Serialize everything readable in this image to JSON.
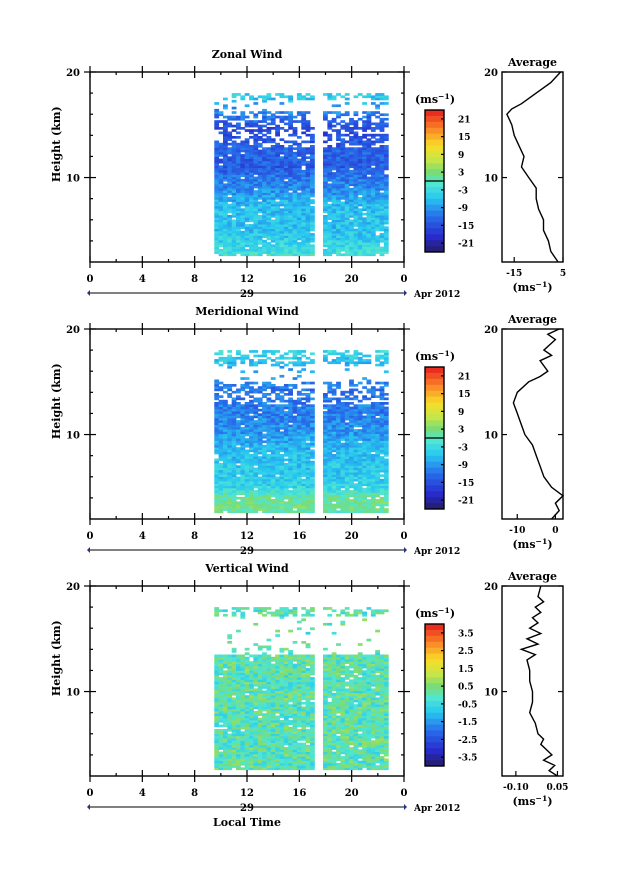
{
  "chart_data": [
    {
      "type": "heatmap",
      "title": "Zonal Wind",
      "ylabel": "Height (km)",
      "ylim": [
        2,
        20
      ],
      "xlim": [
        0,
        24
      ],
      "yticks": [
        "20",
        "10"
      ],
      "xticks": [
        "0",
        "4",
        "8",
        "12",
        "16",
        "20",
        "0"
      ],
      "date_label": "29",
      "month_label": "Apr 2012",
      "data_time_range": [
        9.5,
        22.8
      ],
      "gap_time": 17.5,
      "gap_heights": [
        17.2,
        16.2
      ],
      "sparse_above": 12.7,
      "colorbar": {
        "unit": "(ms⁻¹)",
        "tick_labels": [
          "21",
          "15",
          "9",
          "3",
          "-3",
          "-9",
          "-15",
          "-21"
        ],
        "min": -24,
        "max": 24,
        "zero_line": true
      },
      "field_profile": [
        {
          "h": 2,
          "v": 1
        },
        {
          "h": 3,
          "v": -3
        },
        {
          "h": 5,
          "v": -6
        },
        {
          "h": 7,
          "v": -6
        },
        {
          "h": 9,
          "v": -10
        },
        {
          "h": 11,
          "v": -14
        },
        {
          "h": 12.5,
          "v": -13
        },
        {
          "h": 14.5,
          "v": -16
        },
        {
          "h": 16.5,
          "v": -9
        },
        {
          "h": 17.5,
          "v": -5
        }
      ],
      "average": {
        "title": "Average",
        "xlabel": "(ms⁻¹)",
        "xticks": [
          "-15",
          "5"
        ],
        "yticks": [
          "20",
          "10"
        ],
        "xlim": [
          -20,
          5
        ],
        "ylim": [
          2,
          20
        ],
        "profile": [
          {
            "h": 2.0,
            "v": 3
          },
          {
            "h": 3.0,
            "v": 0
          },
          {
            "h": 4.0,
            "v": -1
          },
          {
            "h": 5.0,
            "v": -3
          },
          {
            "h": 6.0,
            "v": -3
          },
          {
            "h": 7.0,
            "v": -5
          },
          {
            "h": 8.0,
            "v": -6
          },
          {
            "h": 9.0,
            "v": -6
          },
          {
            "h": 10.0,
            "v": -9
          },
          {
            "h": 11.0,
            "v": -12
          },
          {
            "h": 12.0,
            "v": -11
          },
          {
            "h": 13.0,
            "v": -13
          },
          {
            "h": 14.0,
            "v": -15
          },
          {
            "h": 15.0,
            "v": -16
          },
          {
            "h": 16.0,
            "v": -18
          },
          {
            "h": 16.5,
            "v": -16
          },
          {
            "h": 17.0,
            "v": -12
          },
          {
            "h": 18.0,
            "v": -6
          },
          {
            "h": 19.0,
            "v": 0
          },
          {
            "h": 20.0,
            "v": 4
          }
        ]
      }
    },
    {
      "type": "heatmap",
      "title": "Meridional Wind",
      "ylabel": "Height (km)",
      "ylim": [
        2,
        20
      ],
      "xlim": [
        0,
        24
      ],
      "yticks": [
        "20",
        "10"
      ],
      "xticks": [
        "0",
        "4",
        "8",
        "12",
        "16",
        "20",
        "0"
      ],
      "date_label": "29",
      "month_label": "Apr 2012",
      "data_time_range": [
        9.5,
        22.8
      ],
      "gap_time": 17.5,
      "gap_heights": [
        16.5,
        15.0
      ],
      "sparse_above": 12.7,
      "colorbar": {
        "unit": "(ms⁻¹)",
        "tick_labels": [
          "21",
          "15",
          "9",
          "3",
          "-3",
          "-9",
          "-15",
          "-21"
        ],
        "min": -24,
        "max": 24,
        "zero_line": true
      },
      "field_profile": [
        {
          "h": 2,
          "v": -2
        },
        {
          "h": 3,
          "v": 2
        },
        {
          "h": 4,
          "v": 1
        },
        {
          "h": 5,
          "v": -4
        },
        {
          "h": 6,
          "v": -5
        },
        {
          "h": 8,
          "v": -6
        },
        {
          "h": 10,
          "v": -9
        },
        {
          "h": 12,
          "v": -11
        },
        {
          "h": 14,
          "v": -12
        },
        {
          "h": 16,
          "v": -8
        },
        {
          "h": 18,
          "v": -3
        }
      ],
      "average": {
        "title": "Average",
        "xlabel": "(ms⁻¹)",
        "xticks": [
          "-10",
          "0"
        ],
        "yticks": [
          "20",
          "10"
        ],
        "xlim": [
          -14,
          2
        ],
        "ylim": [
          2,
          20
        ],
        "profile": [
          {
            "h": 2.0,
            "v": -1
          },
          {
            "h": 2.8,
            "v": 1
          },
          {
            "h": 3.5,
            "v": 0
          },
          {
            "h": 4.2,
            "v": 2
          },
          {
            "h": 5.0,
            "v": -1
          },
          {
            "h": 6.0,
            "v": -3
          },
          {
            "h": 7.0,
            "v": -4
          },
          {
            "h": 8.0,
            "v": -5
          },
          {
            "h": 9.0,
            "v": -6
          },
          {
            "h": 10.0,
            "v": -8
          },
          {
            "h": 11.0,
            "v": -9
          },
          {
            "h": 12.0,
            "v": -10
          },
          {
            "h": 13.0,
            "v": -11
          },
          {
            "h": 14.0,
            "v": -10
          },
          {
            "h": 15.0,
            "v": -7
          },
          {
            "h": 15.5,
            "v": -4
          },
          {
            "h": 16.0,
            "v": -2
          },
          {
            "h": 17.0,
            "v": -4
          },
          {
            "h": 17.5,
            "v": -1
          },
          {
            "h": 18.0,
            "v": -3
          },
          {
            "h": 19.0,
            "v": 0
          },
          {
            "h": 19.5,
            "v": -2
          },
          {
            "h": 20.0,
            "v": 1
          }
        ]
      }
    },
    {
      "type": "heatmap",
      "title": "Vertical Wind",
      "ylabel": "Height (km)",
      "xlabel": "Local Time",
      "ylim": [
        2,
        20
      ],
      "xlim": [
        0,
        24
      ],
      "yticks": [
        "20",
        "10"
      ],
      "xticks": [
        "0",
        "4",
        "8",
        "12",
        "16",
        "20",
        "0"
      ],
      "date_label": "29",
      "month_label": "Apr 2012",
      "data_time_range": [
        9.5,
        22.8
      ],
      "gap_time": 17.5,
      "gap_heights": [
        17.0,
        13.5
      ],
      "sparse_above": 15.0,
      "colorbar": {
        "unit": "(ms⁻¹)",
        "tick_labels": [
          "3.5",
          "2.5",
          "1.5",
          "0.5",
          "-0.5",
          "-1.5",
          "-2.5",
          "-3.5"
        ],
        "min": -4,
        "max": 4,
        "zero_line": false
      },
      "field_profile": [
        {
          "h": 2,
          "v": 0
        },
        {
          "h": 10,
          "v": 0
        },
        {
          "h": 20,
          "v": 0
        }
      ],
      "average": {
        "title": "Average",
        "xlabel": "(ms⁻¹)",
        "xticks": [
          "-0.10",
          "0.05"
        ],
        "yticks": [
          "20",
          "10"
        ],
        "xlim": [
          -0.15,
          0.07
        ],
        "ylim": [
          2,
          20
        ],
        "profile": [
          {
            "h": 2.0,
            "v": 0.05
          },
          {
            "h": 2.5,
            "v": 0.02
          },
          {
            "h": 3.0,
            "v": 0.04
          },
          {
            "h": 3.5,
            "v": 0.0
          },
          {
            "h": 4.0,
            "v": 0.03
          },
          {
            "h": 4.5,
            "v": 0.01
          },
          {
            "h": 5.0,
            "v": -0.01
          },
          {
            "h": 5.5,
            "v": 0.0
          },
          {
            "h": 6.0,
            "v": -0.02
          },
          {
            "h": 7.0,
            "v": -0.03
          },
          {
            "h": 8.0,
            "v": -0.05
          },
          {
            "h": 9.0,
            "v": -0.04
          },
          {
            "h": 10.0,
            "v": -0.04
          },
          {
            "h": 11.0,
            "v": -0.05
          },
          {
            "h": 12.0,
            "v": -0.05
          },
          {
            "h": 13.0,
            "v": -0.06
          },
          {
            "h": 13.5,
            "v": -0.03
          },
          {
            "h": 14.0,
            "v": -0.08
          },
          {
            "h": 14.5,
            "v": -0.02
          },
          {
            "h": 15.0,
            "v": -0.06
          },
          {
            "h": 15.5,
            "v": -0.01
          },
          {
            "h": 16.0,
            "v": -0.05
          },
          {
            "h": 16.5,
            "v": -0.02
          },
          {
            "h": 17.0,
            "v": -0.04
          },
          {
            "h": 17.5,
            "v": -0.01
          },
          {
            "h": 18.0,
            "v": -0.03
          },
          {
            "h": 18.5,
            "v": 0.0
          },
          {
            "h": 19.0,
            "v": -0.02
          },
          {
            "h": 20.0,
            "v": -0.01
          }
        ]
      }
    }
  ]
}
